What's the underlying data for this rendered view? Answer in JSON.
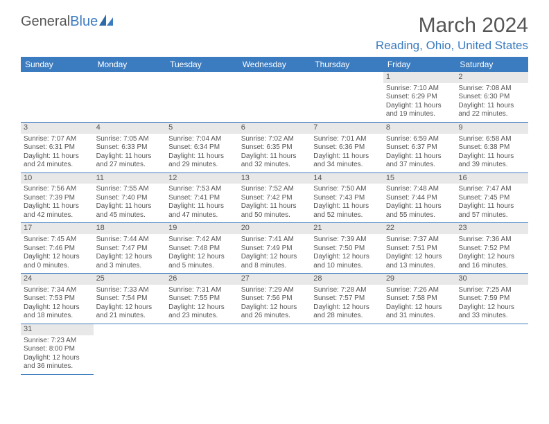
{
  "brand": {
    "part1": "General",
    "part2": "Blue",
    "icon_color": "#3b7bbf"
  },
  "title": "March 2024",
  "location": "Reading, Ohio, United States",
  "colors": {
    "header_bg": "#3b7bbf",
    "header_fg": "#ffffff",
    "accent": "#3b7bbf",
    "daynum_bg": "#e8e8e8",
    "text": "#555555",
    "border": "#3b7bbf"
  },
  "weekdays": [
    "Sunday",
    "Monday",
    "Tuesday",
    "Wednesday",
    "Thursday",
    "Friday",
    "Saturday"
  ],
  "grid": [
    [
      null,
      null,
      null,
      null,
      null,
      {
        "n": "1",
        "sunrise": "Sunrise: 7:10 AM",
        "sunset": "Sunset: 6:29 PM",
        "day1": "Daylight: 11 hours",
        "day2": "and 19 minutes."
      },
      {
        "n": "2",
        "sunrise": "Sunrise: 7:08 AM",
        "sunset": "Sunset: 6:30 PM",
        "day1": "Daylight: 11 hours",
        "day2": "and 22 minutes."
      }
    ],
    [
      {
        "n": "3",
        "sunrise": "Sunrise: 7:07 AM",
        "sunset": "Sunset: 6:31 PM",
        "day1": "Daylight: 11 hours",
        "day2": "and 24 minutes."
      },
      {
        "n": "4",
        "sunrise": "Sunrise: 7:05 AM",
        "sunset": "Sunset: 6:33 PM",
        "day1": "Daylight: 11 hours",
        "day2": "and 27 minutes."
      },
      {
        "n": "5",
        "sunrise": "Sunrise: 7:04 AM",
        "sunset": "Sunset: 6:34 PM",
        "day1": "Daylight: 11 hours",
        "day2": "and 29 minutes."
      },
      {
        "n": "6",
        "sunrise": "Sunrise: 7:02 AM",
        "sunset": "Sunset: 6:35 PM",
        "day1": "Daylight: 11 hours",
        "day2": "and 32 minutes."
      },
      {
        "n": "7",
        "sunrise": "Sunrise: 7:01 AM",
        "sunset": "Sunset: 6:36 PM",
        "day1": "Daylight: 11 hours",
        "day2": "and 34 minutes."
      },
      {
        "n": "8",
        "sunrise": "Sunrise: 6:59 AM",
        "sunset": "Sunset: 6:37 PM",
        "day1": "Daylight: 11 hours",
        "day2": "and 37 minutes."
      },
      {
        "n": "9",
        "sunrise": "Sunrise: 6:58 AM",
        "sunset": "Sunset: 6:38 PM",
        "day1": "Daylight: 11 hours",
        "day2": "and 39 minutes."
      }
    ],
    [
      {
        "n": "10",
        "sunrise": "Sunrise: 7:56 AM",
        "sunset": "Sunset: 7:39 PM",
        "day1": "Daylight: 11 hours",
        "day2": "and 42 minutes."
      },
      {
        "n": "11",
        "sunrise": "Sunrise: 7:55 AM",
        "sunset": "Sunset: 7:40 PM",
        "day1": "Daylight: 11 hours",
        "day2": "and 45 minutes."
      },
      {
        "n": "12",
        "sunrise": "Sunrise: 7:53 AM",
        "sunset": "Sunset: 7:41 PM",
        "day1": "Daylight: 11 hours",
        "day2": "and 47 minutes."
      },
      {
        "n": "13",
        "sunrise": "Sunrise: 7:52 AM",
        "sunset": "Sunset: 7:42 PM",
        "day1": "Daylight: 11 hours",
        "day2": "and 50 minutes."
      },
      {
        "n": "14",
        "sunrise": "Sunrise: 7:50 AM",
        "sunset": "Sunset: 7:43 PM",
        "day1": "Daylight: 11 hours",
        "day2": "and 52 minutes."
      },
      {
        "n": "15",
        "sunrise": "Sunrise: 7:48 AM",
        "sunset": "Sunset: 7:44 PM",
        "day1": "Daylight: 11 hours",
        "day2": "and 55 minutes."
      },
      {
        "n": "16",
        "sunrise": "Sunrise: 7:47 AM",
        "sunset": "Sunset: 7:45 PM",
        "day1": "Daylight: 11 hours",
        "day2": "and 57 minutes."
      }
    ],
    [
      {
        "n": "17",
        "sunrise": "Sunrise: 7:45 AM",
        "sunset": "Sunset: 7:46 PM",
        "day1": "Daylight: 12 hours",
        "day2": "and 0 minutes."
      },
      {
        "n": "18",
        "sunrise": "Sunrise: 7:44 AM",
        "sunset": "Sunset: 7:47 PM",
        "day1": "Daylight: 12 hours",
        "day2": "and 3 minutes."
      },
      {
        "n": "19",
        "sunrise": "Sunrise: 7:42 AM",
        "sunset": "Sunset: 7:48 PM",
        "day1": "Daylight: 12 hours",
        "day2": "and 5 minutes."
      },
      {
        "n": "20",
        "sunrise": "Sunrise: 7:41 AM",
        "sunset": "Sunset: 7:49 PM",
        "day1": "Daylight: 12 hours",
        "day2": "and 8 minutes."
      },
      {
        "n": "21",
        "sunrise": "Sunrise: 7:39 AM",
        "sunset": "Sunset: 7:50 PM",
        "day1": "Daylight: 12 hours",
        "day2": "and 10 minutes."
      },
      {
        "n": "22",
        "sunrise": "Sunrise: 7:37 AM",
        "sunset": "Sunset: 7:51 PM",
        "day1": "Daylight: 12 hours",
        "day2": "and 13 minutes."
      },
      {
        "n": "23",
        "sunrise": "Sunrise: 7:36 AM",
        "sunset": "Sunset: 7:52 PM",
        "day1": "Daylight: 12 hours",
        "day2": "and 16 minutes."
      }
    ],
    [
      {
        "n": "24",
        "sunrise": "Sunrise: 7:34 AM",
        "sunset": "Sunset: 7:53 PM",
        "day1": "Daylight: 12 hours",
        "day2": "and 18 minutes."
      },
      {
        "n": "25",
        "sunrise": "Sunrise: 7:33 AM",
        "sunset": "Sunset: 7:54 PM",
        "day1": "Daylight: 12 hours",
        "day2": "and 21 minutes."
      },
      {
        "n": "26",
        "sunrise": "Sunrise: 7:31 AM",
        "sunset": "Sunset: 7:55 PM",
        "day1": "Daylight: 12 hours",
        "day2": "and 23 minutes."
      },
      {
        "n": "27",
        "sunrise": "Sunrise: 7:29 AM",
        "sunset": "Sunset: 7:56 PM",
        "day1": "Daylight: 12 hours",
        "day2": "and 26 minutes."
      },
      {
        "n": "28",
        "sunrise": "Sunrise: 7:28 AM",
        "sunset": "Sunset: 7:57 PM",
        "day1": "Daylight: 12 hours",
        "day2": "and 28 minutes."
      },
      {
        "n": "29",
        "sunrise": "Sunrise: 7:26 AM",
        "sunset": "Sunset: 7:58 PM",
        "day1": "Daylight: 12 hours",
        "day2": "and 31 minutes."
      },
      {
        "n": "30",
        "sunrise": "Sunrise: 7:25 AM",
        "sunset": "Sunset: 7:59 PM",
        "day1": "Daylight: 12 hours",
        "day2": "and 33 minutes."
      }
    ],
    [
      {
        "n": "31",
        "sunrise": "Sunrise: 7:23 AM",
        "sunset": "Sunset: 8:00 PM",
        "day1": "Daylight: 12 hours",
        "day2": "and 36 minutes."
      },
      null,
      null,
      null,
      null,
      null,
      null
    ]
  ]
}
